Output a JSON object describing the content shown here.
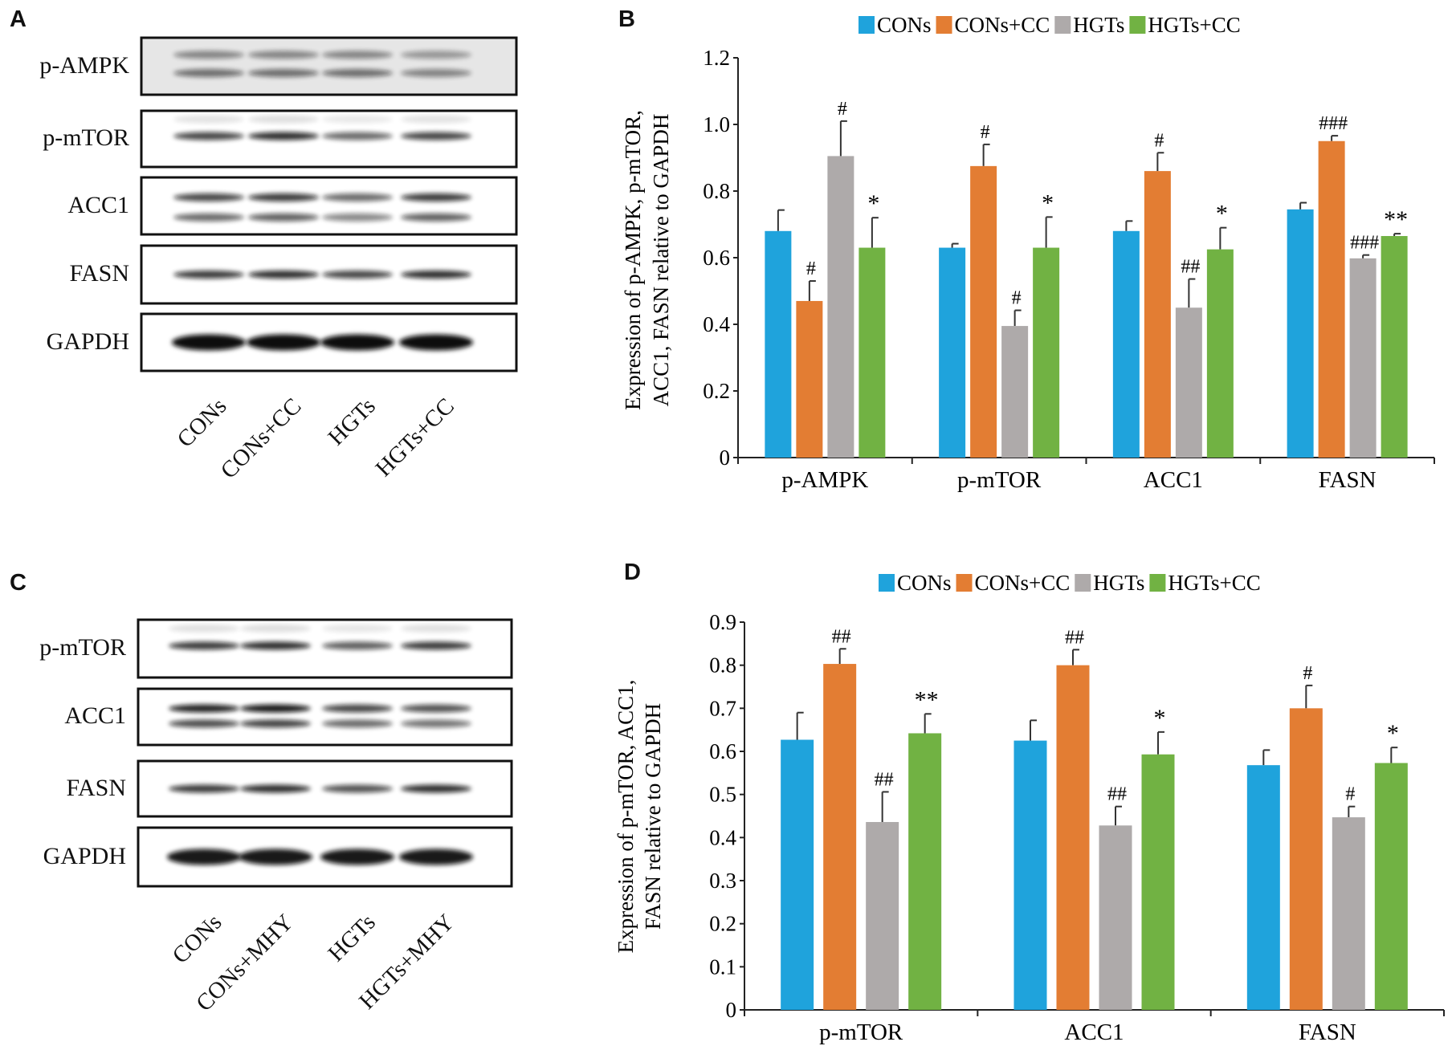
{
  "panels": {
    "A": {
      "letter": "A",
      "blots": [
        "p-AMPK",
        "p-mTOR",
        "ACC1",
        "FASN",
        "GAPDH"
      ],
      "lanes": [
        "CONs",
        "CONs+CC",
        "HGTs",
        "HGTs+CC"
      ]
    },
    "C": {
      "letter": "C",
      "blots": [
        "p-mTOR",
        "ACC1",
        "FASN",
        "GAPDH"
      ],
      "lanes": [
        "CONs",
        "CONs+MHY",
        "HGTs",
        "HGTs+MHY"
      ]
    }
  },
  "chart_data": [
    {
      "panel": "B",
      "type": "bar",
      "title": "",
      "ylabel": [
        "Expression of p-AMPK, p-mTOR,",
        "ACC1, FASN relative to GAPDH"
      ],
      "xlabel": "",
      "ylim": [
        0,
        1.2
      ],
      "yticks": [
        0,
        0.2,
        0.4,
        0.6,
        0.8,
        1.0,
        1.2
      ],
      "ytick_labels": [
        "0",
        "0.2",
        "0.4",
        "0.6",
        "0.8",
        "1.0",
        "1.2"
      ],
      "legend_position": "top-center",
      "categories": [
        "p-AMPK",
        "p-mTOR",
        "ACC1",
        "FASN"
      ],
      "series": [
        {
          "name": "CONs",
          "color": "#1fa3dc",
          "values": [
            0.68,
            0.63,
            0.68,
            0.745
          ],
          "errors": [
            0.063,
            0.012,
            0.03,
            0.02
          ],
          "annotations": [
            "",
            "",
            "",
            ""
          ]
        },
        {
          "name": "CONs+CC",
          "color": "#e37d33",
          "values": [
            0.47,
            0.875,
            0.86,
            0.95
          ],
          "errors": [
            0.06,
            0.065,
            0.055,
            0.016
          ],
          "annotations": [
            "#",
            "#",
            "#",
            "###"
          ]
        },
        {
          "name": "HGTs",
          "color": "#aeaaaa",
          "values": [
            0.905,
            0.395,
            0.45,
            0.598
          ],
          "errors": [
            0.105,
            0.047,
            0.086,
            0.01
          ],
          "annotations": [
            "#",
            "#",
            "##",
            "###"
          ]
        },
        {
          "name": "HGTs+CC",
          "color": "#71b243",
          "values": [
            0.63,
            0.63,
            0.625,
            0.665
          ],
          "errors": [
            0.09,
            0.092,
            0.065,
            0.007
          ],
          "annotations": [
            "*",
            "*",
            "*",
            "**"
          ]
        }
      ]
    },
    {
      "panel": "D",
      "type": "bar",
      "title": "",
      "ylabel": [
        "Expression of p-mTOR, ACC1,",
        "FASN relative to GAPDH"
      ],
      "xlabel": "",
      "ylim": [
        0,
        0.9
      ],
      "yticks": [
        0,
        0.1,
        0.2,
        0.3,
        0.4,
        0.5,
        0.6,
        0.7,
        0.8,
        0.9
      ],
      "ytick_labels": [
        "0",
        "0.1",
        "0.2",
        "0.3",
        "0.4",
        "0.5",
        "0.6",
        "0.7",
        "0.8",
        "0.9"
      ],
      "legend_position": "top-center",
      "categories": [
        "p-mTOR",
        "ACC1",
        "FASN"
      ],
      "series": [
        {
          "name": "CONs",
          "color": "#1fa3dc",
          "values": [
            0.627,
            0.625,
            0.568
          ],
          "errors": [
            0.063,
            0.047,
            0.035
          ],
          "annotations": [
            "",
            "",
            ""
          ]
        },
        {
          "name": "CONs+CC",
          "color": "#e37d33",
          "values": [
            0.803,
            0.8,
            0.7
          ],
          "errors": [
            0.035,
            0.036,
            0.053
          ],
          "annotations": [
            "##",
            "##",
            "#"
          ]
        },
        {
          "name": "HGTs",
          "color": "#aeaaaa",
          "values": [
            0.436,
            0.428,
            0.447
          ],
          "errors": [
            0.07,
            0.044,
            0.025
          ],
          "annotations": [
            "##",
            "##",
            "#"
          ]
        },
        {
          "name": "HGTs+CC",
          "color": "#71b243",
          "values": [
            0.642,
            0.593,
            0.573
          ],
          "errors": [
            0.045,
            0.052,
            0.036
          ],
          "annotations": [
            "**",
            "*",
            "*"
          ]
        }
      ]
    }
  ]
}
